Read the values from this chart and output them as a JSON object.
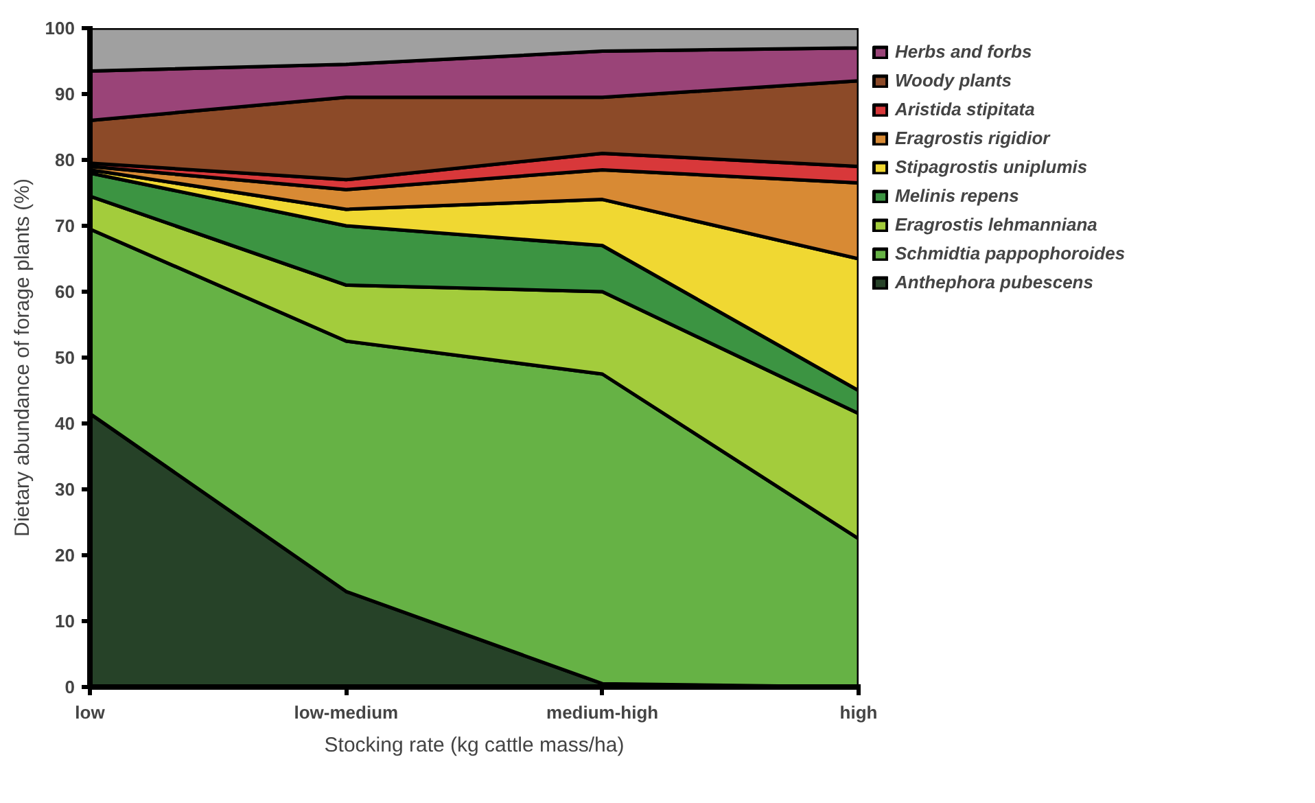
{
  "chart_data": {
    "type": "area",
    "stacked": true,
    "xlabel": "Stocking rate (kg cattle mass/ha)",
    "ylabel": "Dietary abundance of forage plants (%)",
    "categories": [
      "low",
      "low-medium",
      "medium-high",
      "high"
    ],
    "ylim": [
      0,
      100
    ],
    "yticks": [
      0,
      10,
      20,
      30,
      40,
      50,
      60,
      70,
      80,
      90,
      100
    ],
    "legend": "right",
    "series": [
      {
        "name": "Anthephora pubescens",
        "color": "#264228",
        "values": [
          41.5,
          14.5,
          0.5,
          0
        ]
      },
      {
        "name": "Schmidtia pappophoroides",
        "color": "#66b245",
        "values": [
          28,
          38,
          47,
          22.5
        ]
      },
      {
        "name": "Eragrostis lehmanniana",
        "color": "#a3cc3c",
        "values": [
          5,
          8.5,
          12.5,
          19
        ]
      },
      {
        "name": "Melinis repens",
        "color": "#3c9442",
        "values": [
          3.5,
          9,
          7,
          3.5
        ]
      },
      {
        "name": "Stipagrostis uniplumis",
        "color": "#f0d832",
        "values": [
          0.5,
          2.5,
          7,
          20
        ]
      },
      {
        "name": "Eragrostis rigidior",
        "color": "#d88a34",
        "values": [
          0.5,
          3,
          4.5,
          11.5
        ]
      },
      {
        "name": "Aristida stipitata",
        "color": "#d8383a",
        "values": [
          0.5,
          1.5,
          2.5,
          2.5
        ]
      },
      {
        "name": "Woody plants",
        "color": "#8c4a28",
        "values": [
          6.5,
          12.5,
          8.5,
          13
        ]
      },
      {
        "name": "Herbs and forbs",
        "color": "#9a4478",
        "values": [
          7.5,
          5,
          7,
          5
        ]
      },
      {
        "color": "#a0a0a0",
        "values": [
          6.5,
          5.5,
          3.5,
          3
        ]
      }
    ]
  }
}
